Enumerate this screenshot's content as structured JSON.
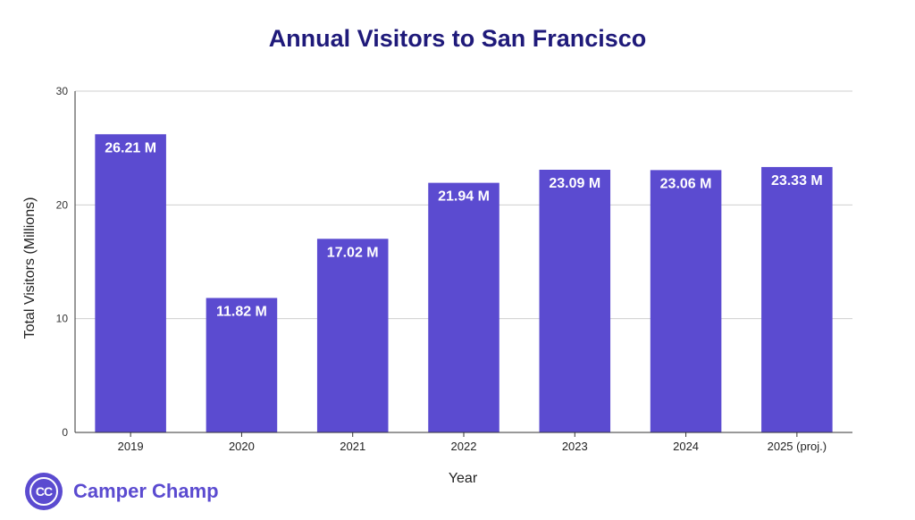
{
  "chart_data": {
    "type": "bar",
    "title": "Annual Visitors to San Francisco",
    "xlabel": "Year",
    "ylabel": "Total Visitors (Millions)",
    "categories": [
      "2019",
      "2020",
      "2021",
      "2022",
      "2023",
      "2024",
      "2025 (proj.)"
    ],
    "values": [
      26.21,
      11.82,
      17.02,
      21.94,
      23.09,
      23.06,
      23.33
    ],
    "data_labels": [
      "26.21 M",
      "11.82 M",
      "17.02 M",
      "21.94 M",
      "23.09 M",
      "23.06 M",
      "23.33 M"
    ],
    "ylim": [
      0,
      30
    ],
    "yticks": [
      0,
      10,
      20,
      30
    ],
    "grid": true,
    "bar_color": "#5b4bd0",
    "title_color": "#1f1a7a"
  },
  "brand": {
    "logo_text": "CC",
    "name": "Camper Champ",
    "color": "#5b4bd0"
  }
}
